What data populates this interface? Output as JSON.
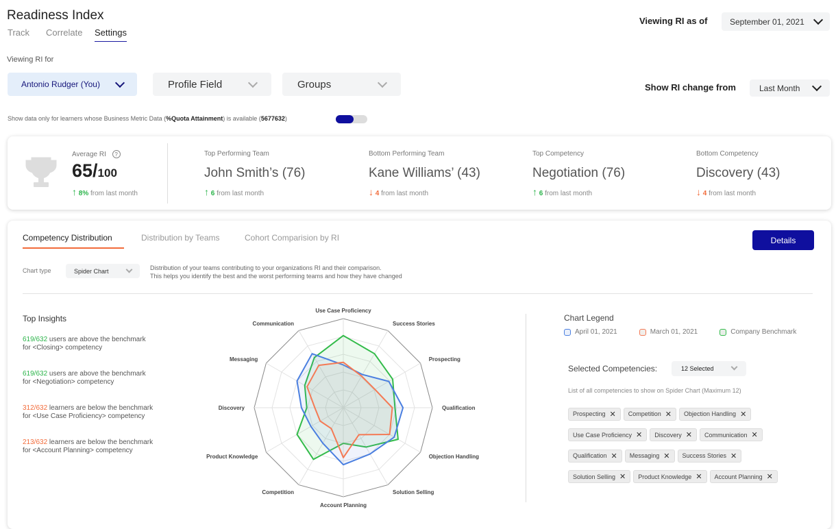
{
  "header": {
    "title": "Readiness Index",
    "tabs": [
      "Track",
      "Correlate",
      "Settings"
    ],
    "active_tab": "Settings",
    "viewing_as_of_label": "Viewing RI as of",
    "viewing_as_of_value": "September 01, 2021",
    "viewing_for_label": "Viewing RI for",
    "user_select": "Antonio Rudger (You)",
    "profile_field": "Profile Field",
    "groups": "Groups",
    "change_from_label": "Show RI change from",
    "change_from_value": "Last Month"
  },
  "filter": {
    "text_a": "Show data only for learners whose Business Metric Data (",
    "metric": "%Quota Attainment",
    "text_b": ") is available (",
    "count": "5677632",
    "text_c": ")",
    "toggle_on": true
  },
  "stats": {
    "average": {
      "label": "Average RI",
      "value": "65/",
      "max": "100",
      "change": "8%",
      "change_text": "from last month",
      "direction": "up"
    },
    "items": [
      {
        "label": "Top Performing Team",
        "value": "John Smith’s (76)",
        "change": "6",
        "change_text": "from last month",
        "direction": "up"
      },
      {
        "label": "Bottom Performing Team",
        "value": "Kane Williams’ (43)",
        "change": "4",
        "change_text": "from last month",
        "direction": "down"
      },
      {
        "label": "Top Competency",
        "value": "Negotiation (76)",
        "change": "6",
        "change_text": "from last month",
        "direction": "up"
      },
      {
        "label": "Bottom Competency",
        "value": "Discovery (43)",
        "change": "4",
        "change_text": "from last month",
        "direction": "down"
      }
    ]
  },
  "panel": {
    "tabs": [
      "Competency Distribution",
      "Distribution by Teams",
      "Cohort Comparision by RI"
    ],
    "details_button": "Details",
    "chart_type_label": "Chart type",
    "chart_type_value": "Spider Chart",
    "description": [
      "Distribution of your teams contributing to your organizations RI and their comparison.",
      "This helps you identify the best and the worst performing teams and how they have changed"
    ]
  },
  "insights": {
    "title": "Top Insights",
    "items": [
      {
        "count": "619/632",
        "text": " users are above the benchmark",
        "line2": "for <Closing> competency",
        "tone": "good"
      },
      {
        "count": "619/632",
        "text": " users are above the benchmark",
        "line2": "for <Negotiation> competency",
        "tone": "good"
      },
      {
        "count": "312/632",
        "text": " learners are below the benchmark",
        "line2": "for <Use Case Proficiency> competency",
        "tone": "bad"
      },
      {
        "count": "213/632",
        "text": " learners are below the benchmark",
        "line2": "for <Account Planning> competency",
        "tone": "bad"
      }
    ]
  },
  "legend": {
    "title": "Chart Legend",
    "items": [
      "April 01, 2021",
      "March 01, 2021",
      "Company Benchmark"
    ]
  },
  "competencies": {
    "label": "Selected Competencies:",
    "select": "12 Selected",
    "hint": "List of all competencies to show on Spider Chart (Maximum 12)",
    "chips": [
      "Prospecting",
      "Competition",
      "Objection Handling",
      "Use Case Proficiency",
      "Discovery",
      "Communication",
      "Qualification",
      "Messaging",
      "Success Stories",
      "Solution Selling",
      "Product Knowledge",
      "Account Planning"
    ]
  },
  "colors": {
    "accent": "#0f0f9e",
    "april": "#4a7fe0",
    "march": "#f47a55",
    "benchmark": "#33bb4a",
    "up": "#2bb44a",
    "down": "#f26b3a"
  },
  "chart_data": {
    "type": "radar",
    "range": [
      0,
      100
    ],
    "grid": true,
    "axes": [
      "Use Case Proficiency",
      "Success Stories",
      "Prospecting",
      "Qualification",
      "Objection Handling",
      "Solution Selling",
      "Account Planning",
      "Competition",
      "Product Knowledge",
      "Discovery",
      "Messaging",
      "Communication"
    ],
    "series": [
      {
        "name": "Company Benchmark",
        "values": [
          81,
          70,
          64,
          58,
          71,
          51,
          40,
          67,
          60,
          41,
          50,
          65
        ]
      },
      {
        "name": "April 01, 2021",
        "values": [
          48,
          43,
          59,
          67,
          66,
          60,
          64,
          46,
          42,
          47,
          60,
          70
        ]
      },
      {
        "name": "March 01, 2021",
        "values": [
          51,
          41,
          41,
          55,
          60,
          35,
          56,
          27,
          30,
          32,
          47,
          55
        ]
      }
    ]
  }
}
